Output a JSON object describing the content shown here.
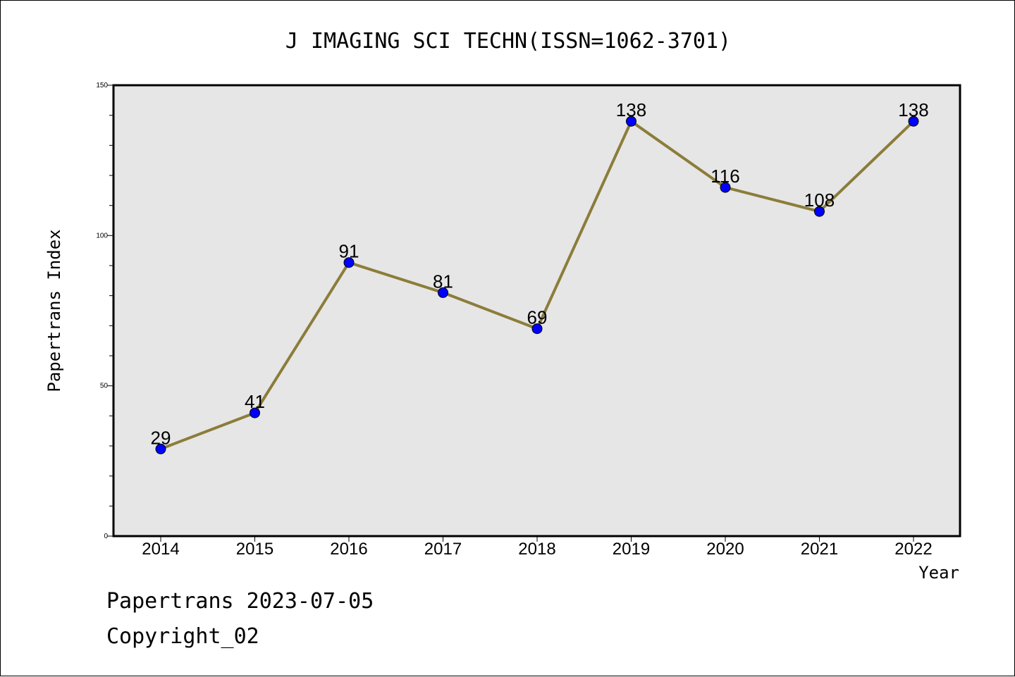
{
  "chart_data": {
    "type": "line",
    "title": "J IMAGING SCI TECHN(ISSN=1062-3701)",
    "xlabel": "Year",
    "ylabel": "Papertrans Index",
    "categories": [
      "2014",
      "2015",
      "2016",
      "2017",
      "2018",
      "2019",
      "2020",
      "2021",
      "2022"
    ],
    "series": [
      {
        "values": [
          29,
          41,
          91,
          81,
          69,
          138,
          116,
          108,
          138
        ]
      }
    ],
    "ylim": [
      0,
      150
    ],
    "yticks": [
      "0",
      "50",
      "100",
      "150"
    ],
    "grid": false,
    "colors": {
      "line": "#8b7d3a",
      "marker": "#0000ff",
      "plot_bg": "#e6e6e6"
    }
  },
  "footer": {
    "line1": "Papertrans 2023-07-05",
    "line2": "Copyright_02"
  }
}
